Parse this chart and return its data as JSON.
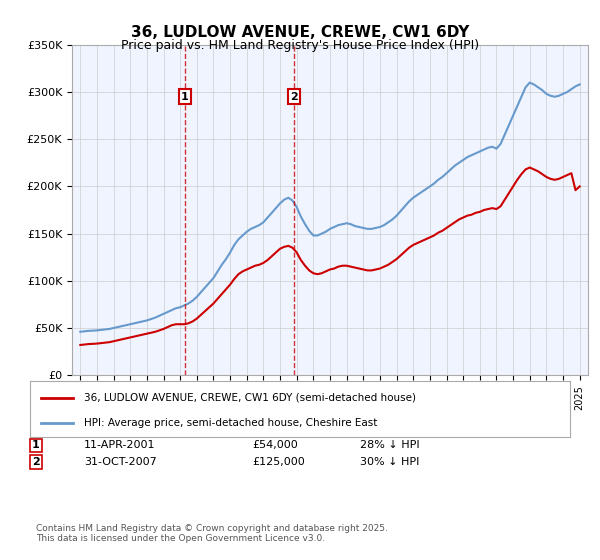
{
  "title": "36, LUDLOW AVENUE, CREWE, CW1 6DY",
  "subtitle": "Price paid vs. HM Land Registry's House Price Index (HPI)",
  "legend_line1": "36, LUDLOW AVENUE, CREWE, CW1 6DY (semi-detached house)",
  "legend_line2": "HPI: Average price, semi-detached house, Cheshire East",
  "footer": "Contains HM Land Registry data © Crown copyright and database right 2025.\nThis data is licensed under the Open Government Licence v3.0.",
  "transactions": [
    {
      "num": 1,
      "date": "11-APR-2001",
      "price": "£54,000",
      "hpi_note": "28% ↓ HPI",
      "year": 2001.28
    },
    {
      "num": 2,
      "date": "31-OCT-2007",
      "price": "£125,000",
      "hpi_note": "30% ↓ HPI",
      "year": 2007.83
    }
  ],
  "transaction_prices": [
    54000,
    125000
  ],
  "ylim": [
    0,
    350000
  ],
  "yticks": [
    0,
    50000,
    100000,
    150000,
    200000,
    250000,
    300000,
    350000
  ],
  "ytick_labels": [
    "£0",
    "£50K",
    "£100K",
    "£150K",
    "£200K",
    "£250K",
    "£300K",
    "£350K"
  ],
  "xlim": [
    1994.5,
    2025.5
  ],
  "background_color": "#f0f4ff",
  "plot_bg_color": "#f0f4ff",
  "red_color": "#cc0000",
  "blue_color": "#6699cc",
  "grid_color": "#cccccc",
  "hpi_data_x": [
    1995,
    1995.25,
    1995.5,
    1995.75,
    1996,
    1996.25,
    1996.5,
    1996.75,
    1997,
    1997.25,
    1997.5,
    1997.75,
    1998,
    1998.25,
    1998.5,
    1998.75,
    1999,
    1999.25,
    1999.5,
    1999.75,
    2000,
    2000.25,
    2000.5,
    2000.75,
    2001,
    2001.25,
    2001.5,
    2001.75,
    2002,
    2002.25,
    2002.5,
    2002.75,
    2003,
    2003.25,
    2003.5,
    2003.75,
    2004,
    2004.25,
    2004.5,
    2004.75,
    2005,
    2005.25,
    2005.5,
    2005.75,
    2006,
    2006.25,
    2006.5,
    2006.75,
    2007,
    2007.25,
    2007.5,
    2007.75,
    2008,
    2008.25,
    2008.5,
    2008.75,
    2009,
    2009.25,
    2009.5,
    2009.75,
    2010,
    2010.25,
    2010.5,
    2010.75,
    2011,
    2011.25,
    2011.5,
    2011.75,
    2012,
    2012.25,
    2012.5,
    2012.75,
    2013,
    2013.25,
    2013.5,
    2013.75,
    2014,
    2014.25,
    2014.5,
    2014.75,
    2015,
    2015.25,
    2015.5,
    2015.75,
    2016,
    2016.25,
    2016.5,
    2016.75,
    2017,
    2017.25,
    2017.5,
    2017.75,
    2018,
    2018.25,
    2018.5,
    2018.75,
    2019,
    2019.25,
    2019.5,
    2019.75,
    2020,
    2020.25,
    2020.5,
    2020.75,
    2021,
    2021.25,
    2021.5,
    2021.75,
    2022,
    2022.25,
    2022.5,
    2022.75,
    2023,
    2023.25,
    2023.5,
    2023.75,
    2024,
    2024.25,
    2024.5,
    2024.75,
    2025
  ],
  "hpi_data_y": [
    46000,
    46500,
    47000,
    47200,
    47500,
    48000,
    48500,
    49000,
    50000,
    51000,
    52000,
    53000,
    54000,
    55000,
    56000,
    57000,
    58000,
    59500,
    61000,
    63000,
    65000,
    67000,
    69000,
    71000,
    72000,
    74000,
    76000,
    79000,
    83000,
    88000,
    93000,
    98000,
    103000,
    110000,
    117000,
    123000,
    130000,
    138000,
    144000,
    148000,
    152000,
    155000,
    157000,
    159000,
    162000,
    167000,
    172000,
    177000,
    182000,
    186000,
    188000,
    185000,
    178000,
    168000,
    160000,
    153000,
    148000,
    148000,
    150000,
    152000,
    155000,
    157000,
    159000,
    160000,
    161000,
    160000,
    158000,
    157000,
    156000,
    155000,
    155000,
    156000,
    157000,
    159000,
    162000,
    165000,
    169000,
    174000,
    179000,
    184000,
    188000,
    191000,
    194000,
    197000,
    200000,
    203000,
    207000,
    210000,
    214000,
    218000,
    222000,
    225000,
    228000,
    231000,
    233000,
    235000,
    237000,
    239000,
    241000,
    242000,
    240000,
    245000,
    255000,
    265000,
    275000,
    285000,
    295000,
    305000,
    310000,
    308000,
    305000,
    302000,
    298000,
    296000,
    295000,
    296000,
    298000,
    300000,
    303000,
    306000,
    308000
  ],
  "red_data_x": [
    1995,
    1995.25,
    1995.5,
    1995.75,
    1996,
    1996.25,
    1996.5,
    1996.75,
    1997,
    1997.25,
    1997.5,
    1997.75,
    1998,
    1998.25,
    1998.5,
    1998.75,
    1999,
    1999.25,
    1999.5,
    1999.75,
    2000,
    2000.25,
    2000.5,
    2000.75,
    2001,
    2001.25,
    2001.5,
    2001.75,
    2002,
    2002.25,
    2002.5,
    2002.75,
    2003,
    2003.25,
    2003.5,
    2003.75,
    2004,
    2004.25,
    2004.5,
    2004.75,
    2005,
    2005.25,
    2005.5,
    2005.75,
    2006,
    2006.25,
    2006.5,
    2006.75,
    2007,
    2007.25,
    2007.5,
    2007.75,
    2008,
    2008.25,
    2008.5,
    2008.75,
    2009,
    2009.25,
    2009.5,
    2009.75,
    2010,
    2010.25,
    2010.5,
    2010.75,
    2011,
    2011.25,
    2011.5,
    2011.75,
    2012,
    2012.25,
    2012.5,
    2012.75,
    2013,
    2013.25,
    2013.5,
    2013.75,
    2014,
    2014.25,
    2014.5,
    2014.75,
    2015,
    2015.25,
    2015.5,
    2015.75,
    2016,
    2016.25,
    2016.5,
    2016.75,
    2017,
    2017.25,
    2017.5,
    2017.75,
    2018,
    2018.25,
    2018.5,
    2018.75,
    2019,
    2019.25,
    2019.5,
    2019.75,
    2020,
    2020.25,
    2020.5,
    2020.75,
    2021,
    2021.25,
    2021.5,
    2021.75,
    2022,
    2022.25,
    2022.5,
    2022.75,
    2023,
    2023.25,
    2023.5,
    2023.75,
    2024,
    2024.25,
    2024.5,
    2024.75,
    2025
  ],
  "red_data_y": [
    32000,
    32500,
    33000,
    33200,
    33500,
    34000,
    34500,
    35000,
    36000,
    37000,
    38000,
    39000,
    40000,
    41000,
    42000,
    43000,
    44000,
    45000,
    46000,
    47500,
    49000,
    51000,
    53000,
    54000,
    54000,
    54000,
    55000,
    57000,
    60000,
    64000,
    68000,
    72000,
    76000,
    81000,
    86000,
    91000,
    96000,
    102000,
    107000,
    110000,
    112000,
    114000,
    116000,
    117000,
    119000,
    122000,
    126000,
    130000,
    134000,
    136000,
    137000,
    135000,
    130000,
    122000,
    116000,
    111000,
    108000,
    107000,
    108000,
    110000,
    112000,
    113000,
    115000,
    116000,
    116000,
    115000,
    114000,
    113000,
    112000,
    111000,
    111000,
    112000,
    113000,
    115000,
    117000,
    120000,
    123000,
    127000,
    131000,
    135000,
    138000,
    140000,
    142000,
    144000,
    146000,
    148000,
    151000,
    153000,
    156000,
    159000,
    162000,
    165000,
    167000,
    169000,
    170000,
    172000,
    173000,
    175000,
    176000,
    177000,
    176000,
    179000,
    186000,
    193000,
    200000,
    207000,
    213000,
    218000,
    220000,
    218000,
    216000,
    213000,
    210000,
    208000,
    207000,
    208000,
    210000,
    212000,
    214000,
    196000,
    200000
  ]
}
